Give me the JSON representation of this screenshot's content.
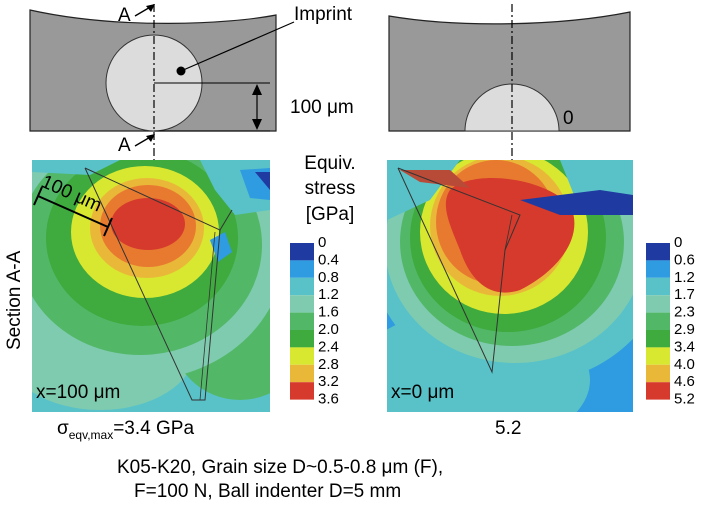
{
  "labels": {
    "section_mark": "A",
    "imprint": "Imprint",
    "dimension": "100 μm",
    "zero": "0",
    "section_title": "Section A-A",
    "scale_100": "100 μm",
    "x_left": "x=100 μm",
    "x_right": "x=0 μm"
  },
  "legend": {
    "title_line1": "Equiv.",
    "title_line2": "stress",
    "title_line3": "[GPa]",
    "colors": [
      "#1f3aa0",
      "#2f9be0",
      "#58c2c8",
      "#7fcbb0",
      "#52b868",
      "#3faa3e",
      "#d8e830",
      "#eab838",
      "#d63a2c"
    ],
    "left_ticks": [
      "0",
      "0.4",
      "0.8",
      "1.2",
      "1.6",
      "2.0",
      "2.4",
      "2.8",
      "3.2",
      "3.6"
    ],
    "right_ticks": [
      "0",
      "0.6",
      "1.2",
      "1.7",
      "2.3",
      "2.9",
      "3.4",
      "4.0",
      "4.6",
      "5.2"
    ]
  },
  "captions": {
    "sigma_symbol": "σ",
    "sigma_sub": "eqv,max",
    "sigma_value": "=3.4 GPa",
    "right_value": "5.2",
    "line1": "K05-K20, Grain size D~0.5-0.8 μm (F),",
    "line2": "F=100 N, Ball indenter D=5 mm"
  }
}
